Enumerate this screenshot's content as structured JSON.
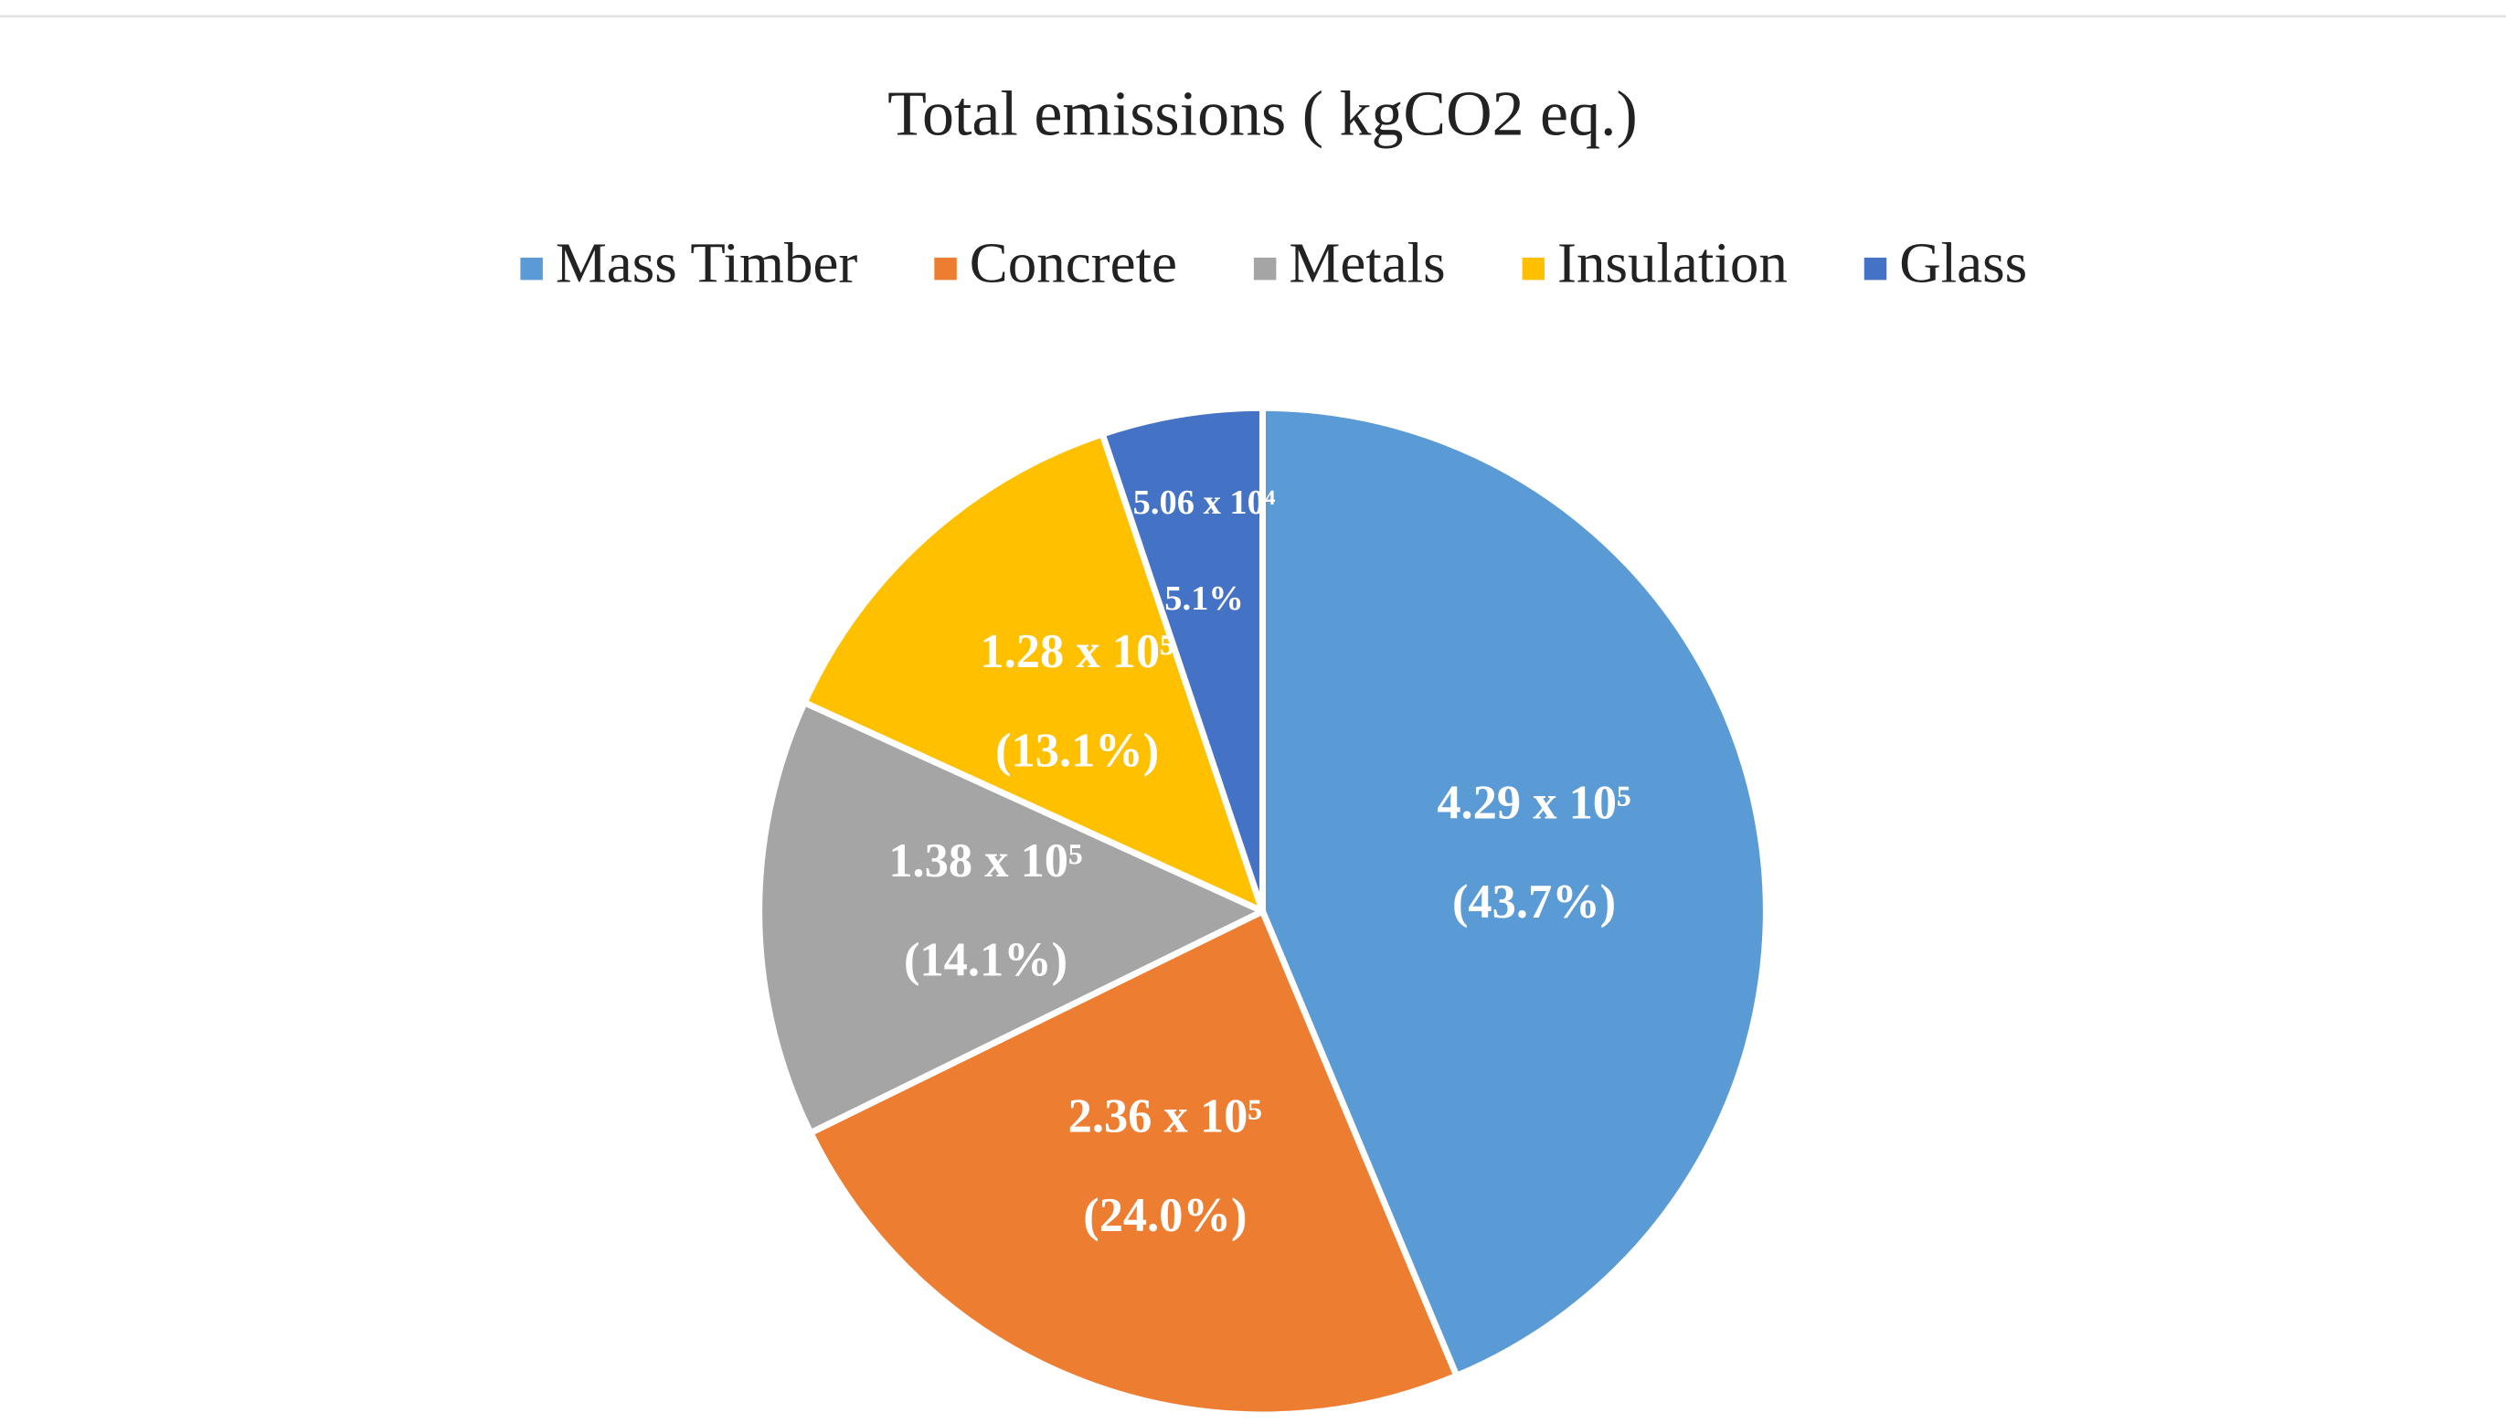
{
  "chart_data": {
    "type": "pie",
    "title": "Total emissions ( kgCO2 eq.)",
    "categories": [
      "Mass Timber",
      "Concrete",
      "Metals",
      "Insulation",
      "Glass"
    ],
    "values": [
      429000,
      236000,
      138000,
      128000,
      50600
    ],
    "value_labels": [
      "4.29 x 10⁵",
      "2.36 x 10⁵",
      "1.38 x 10⁵",
      "1.28 x 10⁵",
      "5.06 x 10⁴"
    ],
    "percents": [
      43.7,
      24.0,
      14.1,
      13.1,
      5.1
    ],
    "percent_labels": [
      "(43.7%)",
      "(24.0%)",
      "(14.1%)",
      "(13.1%)",
      "5.1%"
    ],
    "colors": [
      "#5b9bd5",
      "#ed7d31",
      "#a5a5a5",
      "#ffc000",
      "#4472c4"
    ],
    "legend": "top"
  }
}
